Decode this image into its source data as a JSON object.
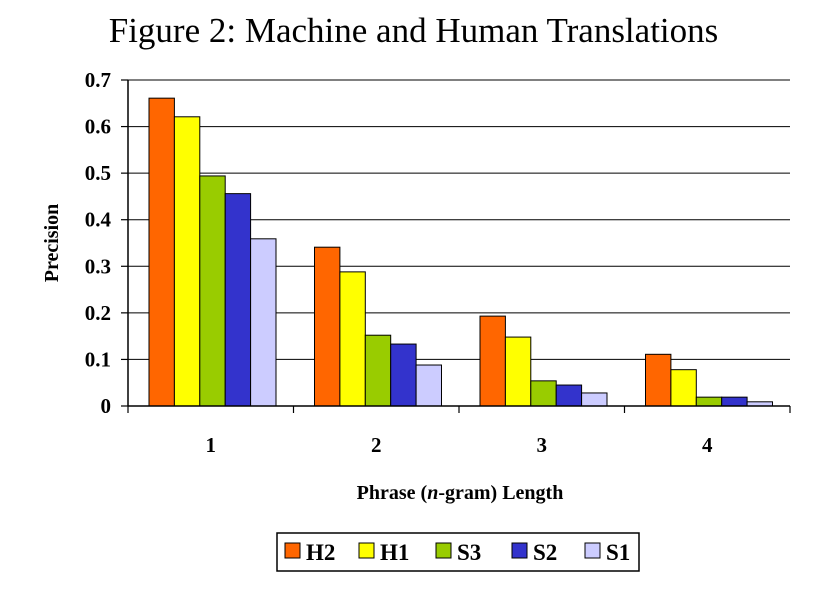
{
  "chart_data": {
    "type": "bar",
    "title": "Figure 2: Machine and Human Translations",
    "xlabel": "Phrase (n-gram) Length",
    "xlabel_parts": [
      "Phrase (",
      "n",
      "-gram) Length"
    ],
    "ylabel": "Precision",
    "ylim": [
      0,
      0.7
    ],
    "yticks": [
      "0",
      "0.1",
      "0.2",
      "0.3",
      "0.4",
      "0.5",
      "0.6",
      "0.7"
    ],
    "grid": true,
    "legend_position": "bottom",
    "categories": [
      "1",
      "2",
      "3",
      "4"
    ],
    "series": [
      {
        "name": "H2",
        "color": "#FF6600",
        "values": [
          0.661,
          0.341,
          0.193,
          0.111
        ]
      },
      {
        "name": "H1",
        "color": "#FFFF00",
        "values": [
          0.621,
          0.288,
          0.148,
          0.078
        ]
      },
      {
        "name": "S3",
        "color": "#99CC00",
        "values": [
          0.494,
          0.152,
          0.054,
          0.019
        ]
      },
      {
        "name": "S2",
        "color": "#3333CC",
        "values": [
          0.456,
          0.133,
          0.045,
          0.019
        ]
      },
      {
        "name": "S1",
        "color": "#CCCCFF",
        "values": [
          0.359,
          0.088,
          0.028,
          0.009
        ]
      }
    ]
  }
}
